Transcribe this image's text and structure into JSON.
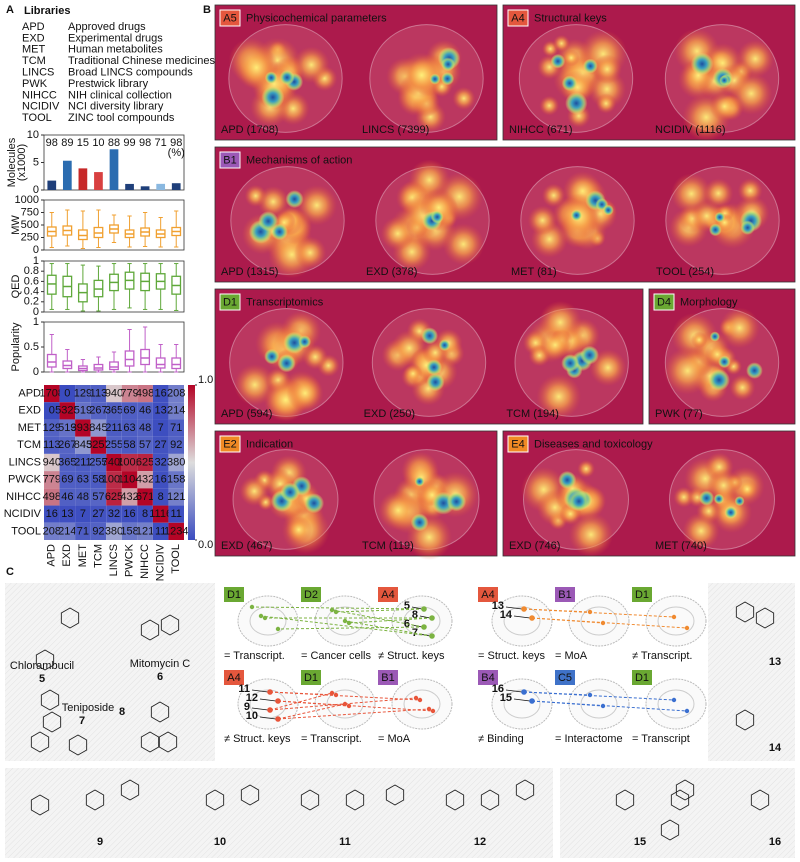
{
  "panel_labels": {
    "a": "A",
    "b": "B",
    "c": "C"
  },
  "libraries": {
    "title": "Libraries",
    "codes": [
      "APD",
      "EXD",
      "MET",
      "TCM",
      "LINCS",
      "PWK",
      "NIHCC",
      "NCIDIV",
      "TOOL"
    ],
    "names": [
      "Approved drugs",
      "Experimental drugs",
      "Human metabolites",
      "Traditional Chinese medicines",
      "Broad LINCS compounds",
      "Prestwick library",
      "NIH clinical collection",
      "NCI diversity library",
      "ZINC tool compounds"
    ]
  },
  "chart_data": [
    {
      "type": "bar",
      "ylabel": [
        "Molecules",
        "(x1000)"
      ],
      "values": [
        1.708,
        5.323,
        3.931,
        3.257,
        7.405,
        1.104,
        0.671,
        1.116,
        1.234
      ],
      "colors": [
        "#1f3f7a",
        "#2b6cb0",
        "#c62828",
        "#d84040",
        "#2b6cb0",
        "#1f3f7a",
        "#1f3f7a",
        "#8ab8e0",
        "#1f3f7a"
      ],
      "percentages": [
        98,
        89,
        15,
        10,
        88,
        99,
        98,
        71,
        98
      ],
      "percentage_unit": "(%)",
      "ylim": [
        0,
        10
      ],
      "yticks": [
        0,
        5,
        10
      ]
    },
    {
      "type": "box",
      "ylabel": "MW",
      "color": "#f0a030",
      "ylim": [
        0,
        1000
      ],
      "yticks": [
        0,
        250,
        500,
        750,
        1000
      ],
      "whislo": [
        50,
        80,
        30,
        50,
        150,
        60,
        70,
        60,
        60
      ],
      "q1": [
        280,
        300,
        210,
        250,
        340,
        250,
        280,
        250,
        290
      ],
      "median": [
        370,
        390,
        290,
        340,
        420,
        320,
        360,
        320,
        370
      ],
      "q3": [
        460,
        480,
        400,
        450,
        500,
        400,
        440,
        400,
        450
      ],
      "whishi": [
        750,
        800,
        780,
        800,
        700,
        680,
        750,
        650,
        780
      ]
    },
    {
      "type": "box",
      "ylabel": "QED",
      "color": "#5fa83a",
      "ylim": [
        0,
        1
      ],
      "yticks": [
        0,
        0.2,
        0.4,
        0.6,
        0.8,
        1
      ],
      "whislo": [
        0.05,
        0.05,
        0.02,
        0.02,
        0.05,
        0.08,
        0.05,
        0.05,
        0.03
      ],
      "q1": [
        0.35,
        0.3,
        0.2,
        0.3,
        0.42,
        0.45,
        0.42,
        0.45,
        0.35
      ],
      "median": [
        0.55,
        0.5,
        0.38,
        0.45,
        0.58,
        0.62,
        0.6,
        0.6,
        0.52
      ],
      "q3": [
        0.72,
        0.7,
        0.55,
        0.62,
        0.74,
        0.78,
        0.76,
        0.75,
        0.7
      ],
      "whishi": [
        0.95,
        0.95,
        0.92,
        0.9,
        0.95,
        0.95,
        0.95,
        0.95,
        0.95
      ]
    },
    {
      "type": "box",
      "ylabel": "Popularity",
      "color": "#c060c8",
      "ylim": [
        0,
        1
      ],
      "yticks": [
        0,
        0.5,
        1
      ],
      "whislo": [
        0,
        0,
        0,
        0,
        0,
        0,
        0,
        0,
        0
      ],
      "q1": [
        0.1,
        0.07,
        0.03,
        0.04,
        0.05,
        0.12,
        0.15,
        0.08,
        0.07
      ],
      "median": [
        0.2,
        0.13,
        0.07,
        0.08,
        0.1,
        0.25,
        0.28,
        0.15,
        0.15
      ],
      "q3": [
        0.35,
        0.22,
        0.12,
        0.15,
        0.2,
        0.42,
        0.45,
        0.28,
        0.28
      ],
      "whishi": [
        0.75,
        0.45,
        0.25,
        0.3,
        0.4,
        0.85,
        0.9,
        0.55,
        0.55
      ]
    },
    {
      "type": "heatmap",
      "rows": [
        "APD",
        "EXD",
        "MET",
        "TCM",
        "LINCS",
        "PWCK",
        "NIHCC",
        "NCIDIV",
        "TOOL"
      ],
      "columns": [
        "APD",
        "EXD",
        "MET",
        "TCM",
        "LINCS",
        "PWCK",
        "NIHCC",
        "NCIDIV",
        "TOOL"
      ],
      "values": [
        [
          1708,
          0,
          129,
          113,
          940,
          779,
          498,
          16,
          208
        ],
        [
          0,
          5323,
          519,
          267,
          365,
          69,
          46,
          13,
          214
        ],
        [
          129,
          519,
          3931,
          845,
          211,
          63,
          48,
          7,
          71
        ],
        [
          113,
          267,
          845,
          3257,
          255,
          58,
          57,
          27,
          92
        ],
        [
          940,
          365,
          211,
          255,
          7405,
          1001,
          625,
          32,
          380
        ],
        [
          779,
          69,
          63,
          58,
          1001,
          1104,
          432,
          16,
          158
        ],
        [
          498,
          46,
          48,
          57,
          625,
          432,
          671,
          8,
          121
        ],
        [
          16,
          13,
          7,
          27,
          32,
          16,
          8,
          1116,
          11
        ],
        [
          208,
          214,
          71,
          92,
          380,
          158,
          121,
          11,
          1234
        ]
      ],
      "colorbar": {
        "lim": [
          0,
          1
        ],
        "ticks": [
          {
            "value": 0,
            "label": "0.0"
          },
          {
            "value": 1,
            "label": "1.0"
          }
        ],
        "colors": [
          "#3b4cc0",
          "#dddddd",
          "#b40426"
        ]
      }
    }
  ],
  "badge_colors": {
    "A": "#e4573d",
    "B": "#9b59b6",
    "C": "#3f72c8",
    "D": "#6aa832",
    "E": "#f08a24"
  },
  "map_background": "#ac1a4c",
  "maps": [
    {
      "code": "A5",
      "title": "Physicochemical parameters",
      "items": [
        "APD (1708)",
        "LINCS (7399)"
      ]
    },
    {
      "code": "A4",
      "title": "Structural keys",
      "items": [
        "NIHCC (671)",
        "NCIDIV (1116)"
      ]
    },
    {
      "code": "B1",
      "title": "Mechanisms of action",
      "items": [
        "APD (1315)",
        "EXD (378)",
        "MET (81)",
        "TOOL (254)"
      ]
    },
    {
      "code": "D1",
      "title": "Transcriptomics",
      "items": [
        "APD (594)",
        "EXD (250)",
        "TCM (194)"
      ]
    },
    {
      "code": "D4",
      "title": "Morphology",
      "items": [
        "PWK (77)"
      ]
    },
    {
      "code": "E2",
      "title": "Indication",
      "items": [
        "EXD (467)",
        "TCM (119)"
      ]
    },
    {
      "code": "E4",
      "title": "Diseases and toxicology",
      "items": [
        "EXD (746)",
        "MET (740)"
      ]
    }
  ],
  "projections": [
    {
      "badges": [
        "D1",
        "D2",
        "A4"
      ],
      "relations": [
        "= Transcript.",
        "= Cancer cells",
        "≠ Struct. keys"
      ],
      "points": [
        5,
        8,
        6,
        7
      ],
      "color": "#7cb342"
    },
    {
      "badges": [
        "A4",
        "B1",
        "D1"
      ],
      "relations": [
        "= Struct. keys",
        "= MoA",
        "≠ Transcript."
      ],
      "points": [
        13,
        14
      ],
      "color": "#f08a30"
    },
    {
      "badges": [
        "A4",
        "D1",
        "B1"
      ],
      "relations": [
        "≠ Struct. keys",
        "= Transcript.",
        "= MoA"
      ],
      "points": [
        11,
        12,
        9,
        10
      ],
      "color": "#e8553a"
    },
    {
      "badges": [
        "B4",
        "C5",
        "D1"
      ],
      "relations": [
        "≠ Binding",
        "= Interactome",
        "= Transcript"
      ],
      "points": [
        16,
        15
      ],
      "color": "#3a6fd0"
    }
  ],
  "compounds": [
    {
      "name": "Chlorambucil",
      "id": 5
    },
    {
      "name": "Teniposide",
      "id": 7
    },
    {
      "name": "Mitomycin C",
      "id": 6
    },
    {
      "id": 8
    },
    {
      "id": 13
    },
    {
      "id": 14
    },
    {
      "id": 9
    },
    {
      "id": 10
    },
    {
      "id": 11
    },
    {
      "id": 12
    },
    {
      "id": 15
    },
    {
      "id": 16
    }
  ]
}
